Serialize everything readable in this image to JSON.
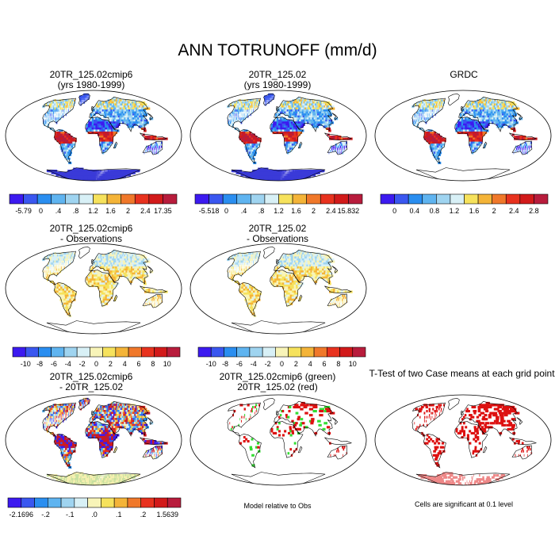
{
  "main_title": "ANN TOTRUNOFF (mm/d)",
  "colors": {
    "ocean": "#ffffff",
    "land_outline": "#000000",
    "abs_palette": [
      "#3c1af0",
      "#3a57f0",
      "#2a8ef0",
      "#5fb4f0",
      "#9fd4f0",
      "#d8f0f6",
      "#f6e25c",
      "#f4b438",
      "#f0782a",
      "#e8321e",
      "#d21a1a",
      "#b81c3c"
    ],
    "diff_palette": [
      "#3c1af0",
      "#3a57f0",
      "#2a8ef0",
      "#5fb4f0",
      "#9fd4f0",
      "#d8f0f6",
      "#f8f4b8",
      "#f6e25c",
      "#f4b438",
      "#f0782a",
      "#e8321e",
      "#d21a1a",
      "#b81c3c"
    ],
    "ttest_green": "#33dd33",
    "ttest_red": "#dd1111"
  },
  "panels": [
    {
      "id": "p1",
      "title": [
        "20TR_125.02cmip6",
        "(yrs 1980-1999)"
      ],
      "style": "abs",
      "colorbar": {
        "labels": [
          "-5.79",
          "0",
          ".4",
          ".8",
          "1.2",
          "1.6",
          "2",
          "2.4",
          "17.35"
        ]
      }
    },
    {
      "id": "p2",
      "title": [
        "20TR_125.02",
        "(yrs 1980-1999)"
      ],
      "style": "abs",
      "colorbar": {
        "labels": [
          "-5.518",
          "0",
          ".4",
          ".8",
          "1.2",
          "1.6",
          "2",
          "2.4",
          "15.832"
        ]
      }
    },
    {
      "id": "p3",
      "title": [
        "",
        "GRDC"
      ],
      "style": "abs",
      "colorbar": {
        "labels": [
          "0",
          "0.4",
          "0.8",
          "1.2",
          "1.6",
          "2",
          "2.4",
          "2.8"
        ]
      }
    },
    {
      "id": "p4",
      "title": [
        "20TR_125.02cmip6",
        "- Observations"
      ],
      "style": "diffobs",
      "colorbar": {
        "labels": [
          "-10",
          "-8",
          "-6",
          "-4",
          "-2",
          "0",
          "2",
          "4",
          "6",
          "8",
          "10"
        ]
      }
    },
    {
      "id": "p5",
      "title": [
        "20TR_125.02",
        "- Observations"
      ],
      "style": "diffobs",
      "colorbar": {
        "labels": [
          "-10",
          "-8",
          "-6",
          "-4",
          "-2",
          "0",
          "2",
          "4",
          "6",
          "8",
          "10"
        ]
      }
    },
    {
      "id": "p7",
      "title": [
        "20TR_125.02cmip6",
        "- 20TR_125.02"
      ],
      "style": "diffcase",
      "colorbar": {
        "labels": [
          "-2.1696",
          "-.2",
          "-.1",
          ".0",
          ".1",
          ".2",
          "1.5639"
        ]
      }
    },
    {
      "id": "p8",
      "title": [
        "20TR_125.02cmip6 (green)",
        "20TR_125.02 (red)"
      ],
      "style": "ttest_gr",
      "note": "Model relative to Obs"
    },
    {
      "id": "p9",
      "title": [
        "",
        "T-Test of two Case means at each grid point"
      ],
      "style": "ttest_r",
      "note": "Cells are significant at 0.1 level"
    }
  ]
}
